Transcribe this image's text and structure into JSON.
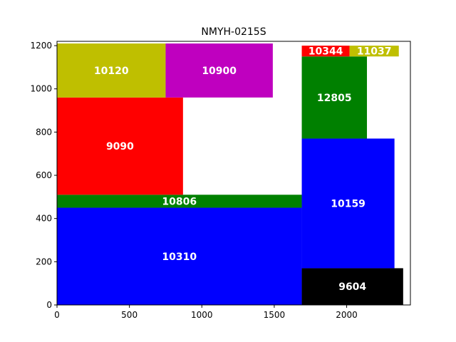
{
  "chart_data": {
    "type": "rectangle-packing",
    "title": "NMYH-0215S",
    "xlim": [
      0,
      2440
    ],
    "ylim": [
      0,
      1220
    ],
    "x_ticks": [
      0,
      500,
      1000,
      1500,
      2000
    ],
    "y_ticks": [
      0,
      200,
      400,
      600,
      800,
      1000,
      1200
    ],
    "grid": false,
    "rects": [
      {
        "label": "10310",
        "x": 0,
        "y": 0,
        "w": 1690,
        "h": 450,
        "color": "#0000ff"
      },
      {
        "label": "10806",
        "x": 0,
        "y": 450,
        "w": 1690,
        "h": 60,
        "color": "#008000"
      },
      {
        "label": "9090",
        "x": 0,
        "y": 510,
        "w": 870,
        "h": 450,
        "color": "#ff0000"
      },
      {
        "label": "10120",
        "x": 0,
        "y": 960,
        "w": 750,
        "h": 250,
        "color": "#bfbf00"
      },
      {
        "label": "10900",
        "x": 750,
        "y": 960,
        "w": 740,
        "h": 250,
        "color": "#bf00bf"
      },
      {
        "label": "9604",
        "x": 1690,
        "y": 0,
        "w": 700,
        "h": 170,
        "color": "#000000"
      },
      {
        "label": "10159",
        "x": 1690,
        "y": 170,
        "w": 640,
        "h": 600,
        "color": "#0000ff"
      },
      {
        "label": "12805",
        "x": 1690,
        "y": 770,
        "w": 450,
        "h": 380,
        "color": "#008000"
      },
      {
        "label": "10344",
        "x": 1690,
        "y": 1150,
        "w": 330,
        "h": 50,
        "color": "#ff0000"
      },
      {
        "label": "11037",
        "x": 2020,
        "y": 1150,
        "w": 340,
        "h": 50,
        "color": "#bfbf00"
      }
    ]
  }
}
